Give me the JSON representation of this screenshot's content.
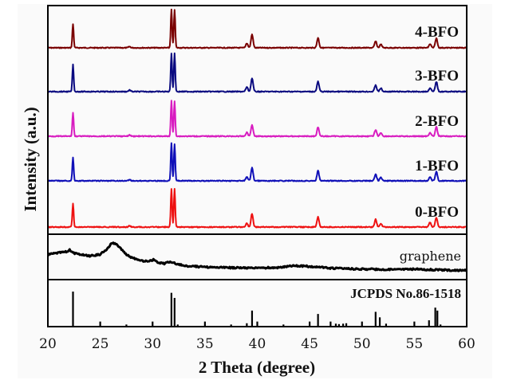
{
  "chart_data": {
    "type": "line",
    "title": "",
    "xlabel": "2 Theta (degree)",
    "ylabel": "Intensity (a.u.)",
    "xlim": [
      20,
      60
    ],
    "xticks": [
      20,
      25,
      30,
      35,
      40,
      45,
      50,
      55,
      60
    ],
    "xtick_labels": [
      "20",
      "25",
      "30",
      "35",
      "40",
      "45",
      "50",
      "55",
      "60"
    ],
    "grid": false,
    "yticks": [],
    "panels": [
      "BFO samples (stacked)",
      "graphene",
      "reference"
    ],
    "series": [
      {
        "name": "4-BFO",
        "color": "#7a0000",
        "panel": "BFO samples (stacked)",
        "peaks": [
          {
            "x": 22.4,
            "rel": 0.62
          },
          {
            "x": 27.8,
            "rel": 0.03
          },
          {
            "x": 31.8,
            "rel": 1.0
          },
          {
            "x": 32.1,
            "rel": 1.0
          },
          {
            "x": 39.0,
            "rel": 0.12
          },
          {
            "x": 39.5,
            "rel": 0.35
          },
          {
            "x": 45.8,
            "rel": 0.26
          },
          {
            "x": 51.3,
            "rel": 0.17
          },
          {
            "x": 51.8,
            "rel": 0.09
          },
          {
            "x": 56.5,
            "rel": 0.1
          },
          {
            "x": 57.1,
            "rel": 0.25
          }
        ]
      },
      {
        "name": "3-BFO",
        "color": "#0a0a80",
        "panel": "BFO samples (stacked)",
        "peaks": [
          {
            "x": 22.4,
            "rel": 0.7
          },
          {
            "x": 27.8,
            "rel": 0.04
          },
          {
            "x": 31.8,
            "rel": 1.0
          },
          {
            "x": 32.1,
            "rel": 1.0
          },
          {
            "x": 39.0,
            "rel": 0.12
          },
          {
            "x": 39.5,
            "rel": 0.35
          },
          {
            "x": 45.8,
            "rel": 0.26
          },
          {
            "x": 51.3,
            "rel": 0.17
          },
          {
            "x": 51.8,
            "rel": 0.09
          },
          {
            "x": 56.5,
            "rel": 0.1
          },
          {
            "x": 57.1,
            "rel": 0.26
          }
        ]
      },
      {
        "name": "2-BFO",
        "color": "#d81cc0",
        "panel": "BFO samples (stacked)",
        "peaks": [
          {
            "x": 22.4,
            "rel": 0.62
          },
          {
            "x": 27.8,
            "rel": 0.03
          },
          {
            "x": 31.8,
            "rel": 0.92
          },
          {
            "x": 32.1,
            "rel": 0.92
          },
          {
            "x": 39.0,
            "rel": 0.1
          },
          {
            "x": 39.5,
            "rel": 0.3
          },
          {
            "x": 45.8,
            "rel": 0.24
          },
          {
            "x": 51.3,
            "rel": 0.17
          },
          {
            "x": 51.8,
            "rel": 0.09
          },
          {
            "x": 56.5,
            "rel": 0.1
          },
          {
            "x": 57.1,
            "rel": 0.24
          }
        ]
      },
      {
        "name": "1-BFO",
        "color": "#1010b8",
        "panel": "BFO samples (stacked)",
        "peaks": [
          {
            "x": 22.4,
            "rel": 0.62
          },
          {
            "x": 27.8,
            "rel": 0.03
          },
          {
            "x": 31.8,
            "rel": 1.0
          },
          {
            "x": 32.1,
            "rel": 0.97
          },
          {
            "x": 39.0,
            "rel": 0.1
          },
          {
            "x": 39.5,
            "rel": 0.35
          },
          {
            "x": 45.8,
            "rel": 0.26
          },
          {
            "x": 51.3,
            "rel": 0.17
          },
          {
            "x": 51.8,
            "rel": 0.09
          },
          {
            "x": 56.5,
            "rel": 0.1
          },
          {
            "x": 57.1,
            "rel": 0.24
          }
        ]
      },
      {
        "name": "0-BFO",
        "color": "#ee1111",
        "panel": "BFO samples (stacked)",
        "peaks": [
          {
            "x": 22.4,
            "rel": 0.62
          },
          {
            "x": 27.8,
            "rel": 0.03
          },
          {
            "x": 31.8,
            "rel": 1.0
          },
          {
            "x": 32.1,
            "rel": 1.0
          },
          {
            "x": 39.0,
            "rel": 0.1
          },
          {
            "x": 39.5,
            "rel": 0.35
          },
          {
            "x": 45.8,
            "rel": 0.26
          },
          {
            "x": 51.3,
            "rel": 0.2
          },
          {
            "x": 51.8,
            "rel": 0.09
          },
          {
            "x": 56.5,
            "rel": 0.12
          },
          {
            "x": 57.1,
            "rel": 0.25
          }
        ]
      },
      {
        "name": "graphene",
        "color": "#000000",
        "panel": "graphene",
        "profile": [
          {
            "x": 20.0,
            "y": 0.55
          },
          {
            "x": 21.0,
            "y": 0.6
          },
          {
            "x": 21.8,
            "y": 0.63
          },
          {
            "x": 22.1,
            "y": 0.68
          },
          {
            "x": 22.4,
            "y": 0.6
          },
          {
            "x": 23.0,
            "y": 0.55
          },
          {
            "x": 24.0,
            "y": 0.5
          },
          {
            "x": 25.0,
            "y": 0.55
          },
          {
            "x": 25.6,
            "y": 0.7
          },
          {
            "x": 26.1,
            "y": 0.88
          },
          {
            "x": 26.5,
            "y": 0.86
          },
          {
            "x": 27.0,
            "y": 0.7
          },
          {
            "x": 27.6,
            "y": 0.52
          },
          {
            "x": 28.3,
            "y": 0.42
          },
          {
            "x": 29.0,
            "y": 0.36
          },
          {
            "x": 29.6,
            "y": 0.34
          },
          {
            "x": 30.1,
            "y": 0.4
          },
          {
            "x": 30.6,
            "y": 0.3
          },
          {
            "x": 31.1,
            "y": 0.28
          },
          {
            "x": 31.5,
            "y": 0.33
          },
          {
            "x": 32.0,
            "y": 0.3
          },
          {
            "x": 33.0,
            "y": 0.22
          },
          {
            "x": 35.0,
            "y": 0.18
          },
          {
            "x": 38.0,
            "y": 0.16
          },
          {
            "x": 40.0,
            "y": 0.15
          },
          {
            "x": 42.0,
            "y": 0.17
          },
          {
            "x": 43.5,
            "y": 0.22
          },
          {
            "x": 45.0,
            "y": 0.2
          },
          {
            "x": 47.0,
            "y": 0.15
          },
          {
            "x": 50.0,
            "y": 0.12
          },
          {
            "x": 53.0,
            "y": 0.11
          },
          {
            "x": 55.0,
            "y": 0.12
          },
          {
            "x": 57.0,
            "y": 0.1
          },
          {
            "x": 60.0,
            "y": 0.08
          }
        ]
      },
      {
        "name": "JCPDS No.86-1518",
        "color": "#000000",
        "panel": "reference",
        "sticks": [
          {
            "x": 22.4,
            "rel": 0.83
          },
          {
            "x": 25.0,
            "rel": 0.12
          },
          {
            "x": 27.5,
            "rel": 0.05
          },
          {
            "x": 30.0,
            "rel": 0.12
          },
          {
            "x": 31.8,
            "rel": 0.8
          },
          {
            "x": 32.1,
            "rel": 0.68
          },
          {
            "x": 32.4,
            "rel": 0.05
          },
          {
            "x": 35.0,
            "rel": 0.12
          },
          {
            "x": 37.5,
            "rel": 0.05
          },
          {
            "x": 39.0,
            "rel": 0.08
          },
          {
            "x": 39.5,
            "rel": 0.38
          },
          {
            "x": 40.0,
            "rel": 0.12
          },
          {
            "x": 42.5,
            "rel": 0.05
          },
          {
            "x": 45.0,
            "rel": 0.12
          },
          {
            "x": 45.8,
            "rel": 0.3
          },
          {
            "x": 47.0,
            "rel": 0.12
          },
          {
            "x": 47.5,
            "rel": 0.07
          },
          {
            "x": 47.8,
            "rel": 0.06
          },
          {
            "x": 48.2,
            "rel": 0.07
          },
          {
            "x": 48.5,
            "rel": 0.08
          },
          {
            "x": 50.0,
            "rel": 0.12
          },
          {
            "x": 51.3,
            "rel": 0.35
          },
          {
            "x": 51.7,
            "rel": 0.22
          },
          {
            "x": 52.3,
            "rel": 0.07
          },
          {
            "x": 55.0,
            "rel": 0.12
          },
          {
            "x": 56.4,
            "rel": 0.15
          },
          {
            "x": 57.0,
            "rel": 0.45
          },
          {
            "x": 57.2,
            "rel": 0.38
          },
          {
            "x": 57.5,
            "rel": 0.05
          }
        ]
      }
    ],
    "labels": {
      "graphene": "graphene",
      "reference": "JCPDS No.86-1518"
    }
  }
}
